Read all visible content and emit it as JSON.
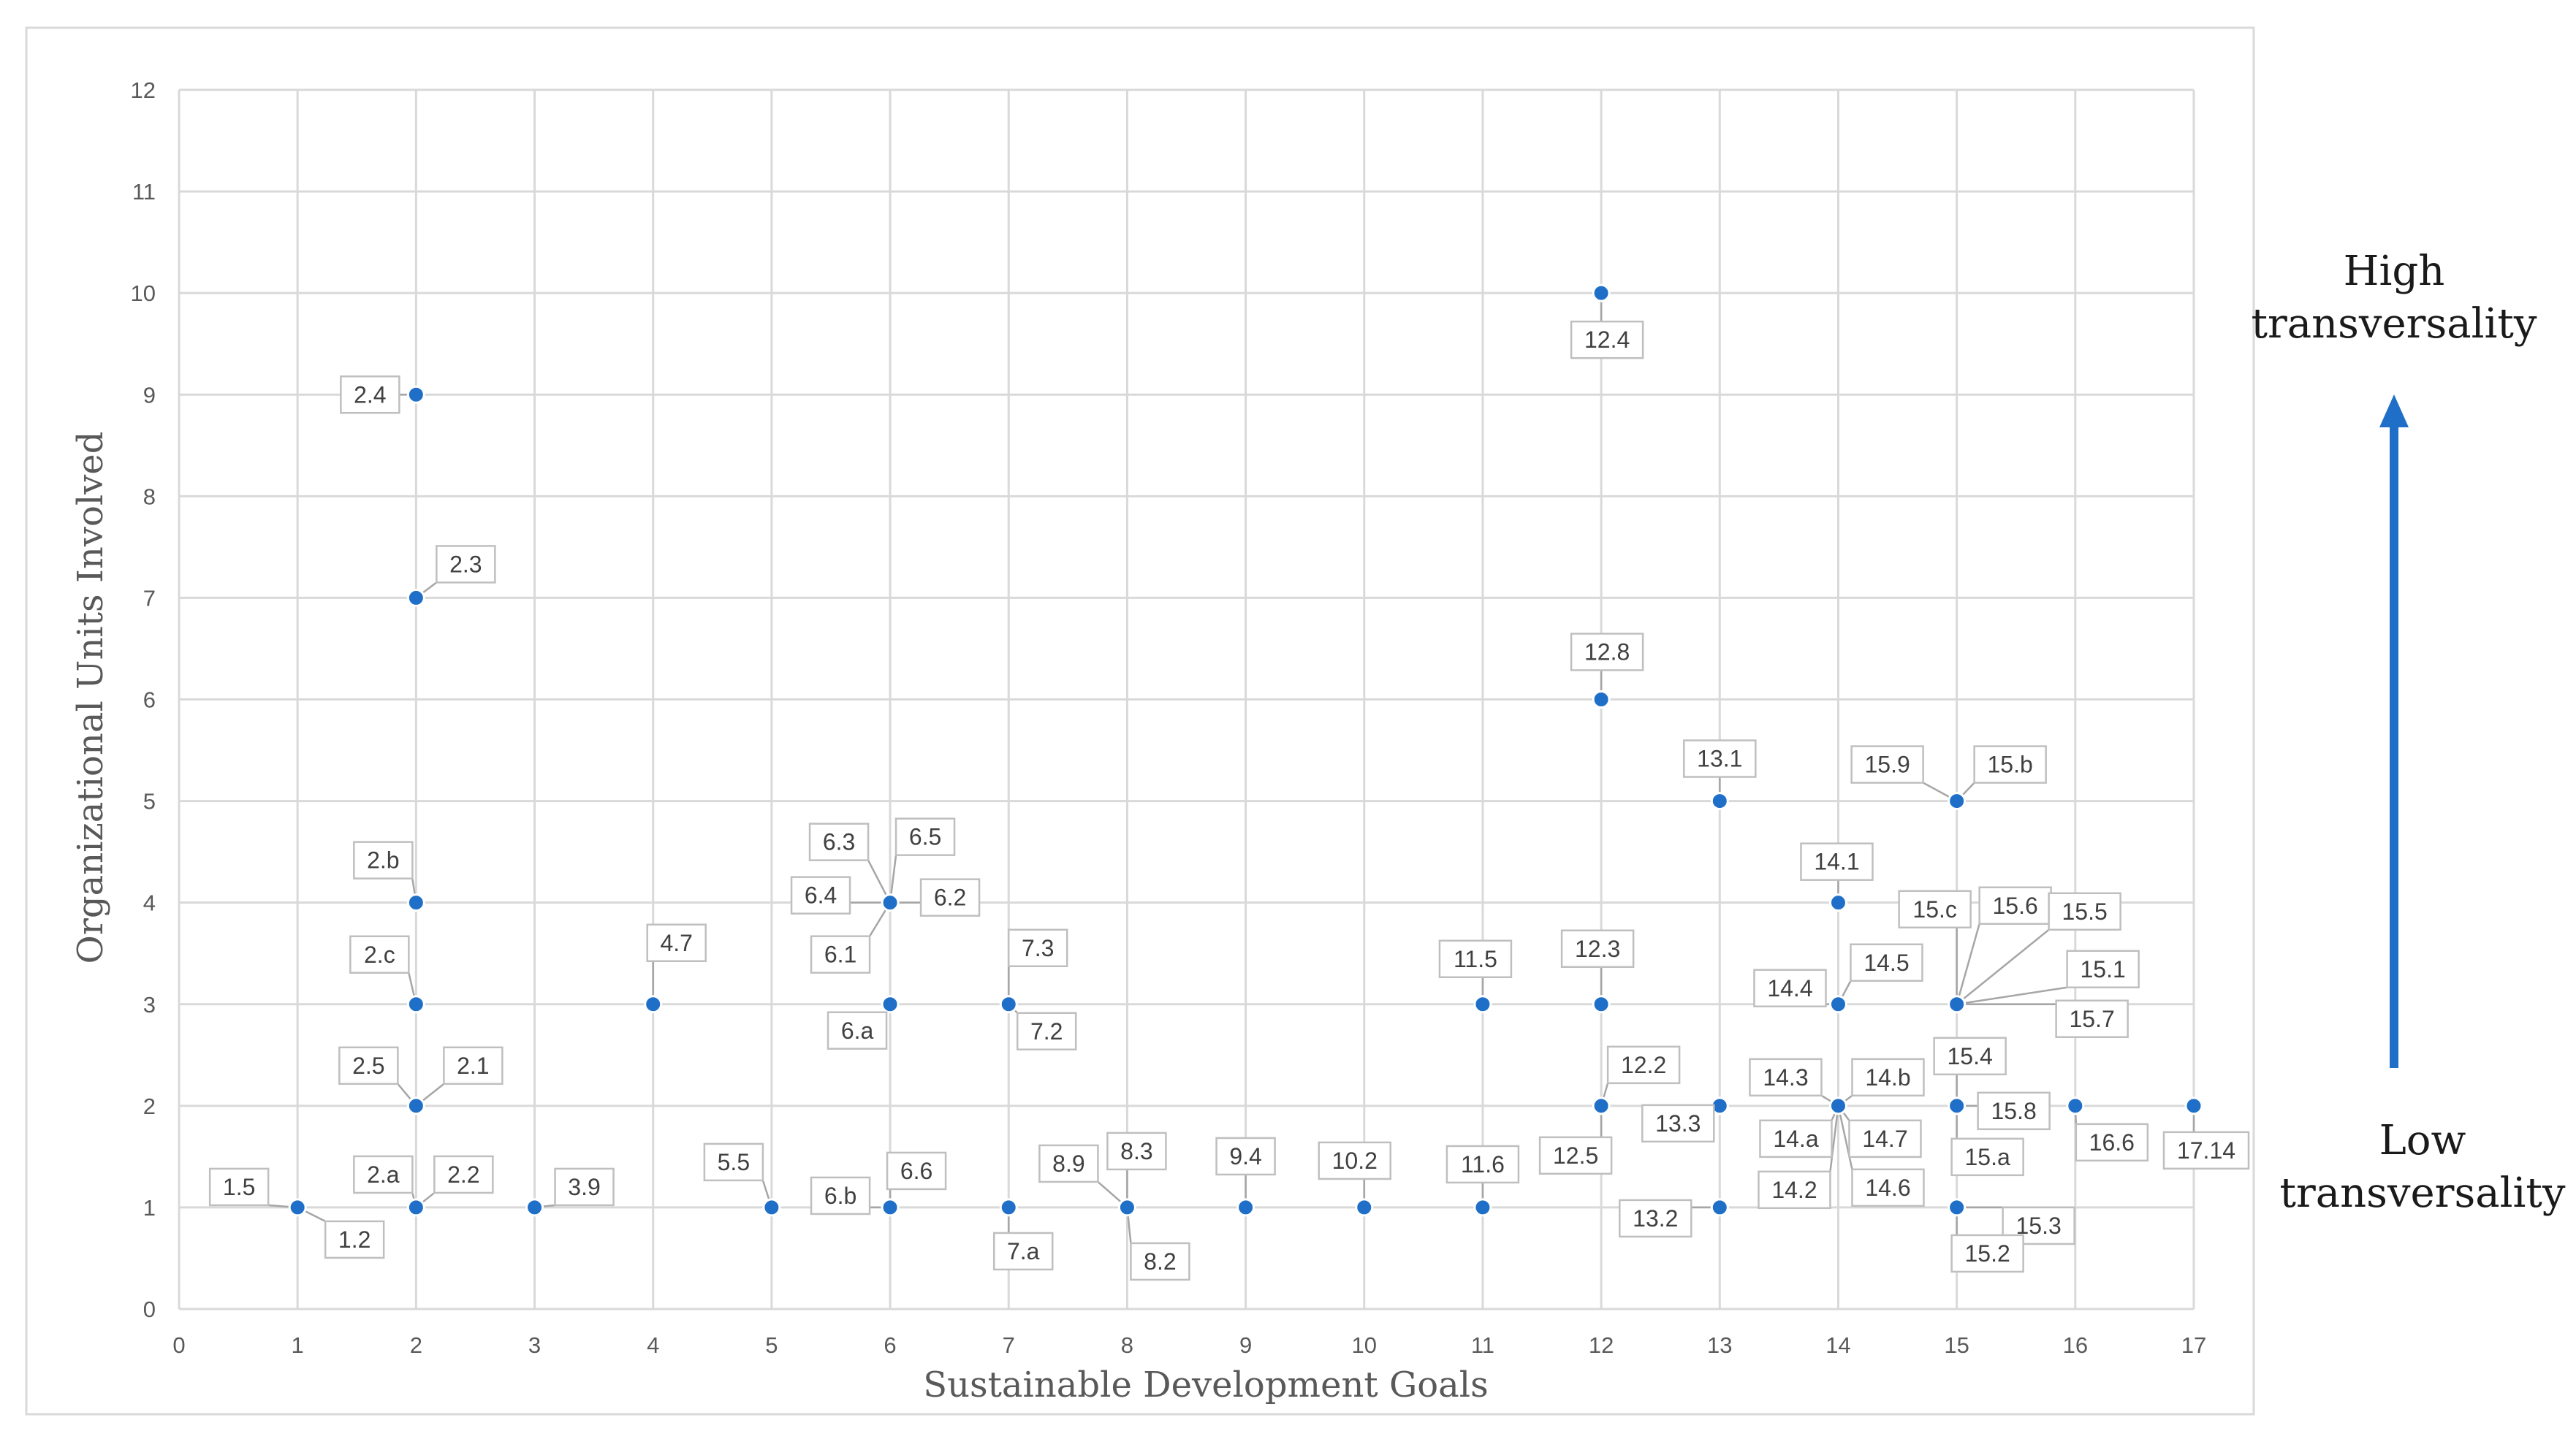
{
  "chart_data": {
    "type": "scatter",
    "title": "",
    "xlabel": "Sustainable Development Goals",
    "ylabel": "Organizational Units Involved",
    "xlim": [
      0,
      17
    ],
    "ylim": [
      0,
      12
    ],
    "x_ticks": [
      0,
      1,
      2,
      3,
      4,
      5,
      6,
      7,
      8,
      9,
      10,
      11,
      12,
      13,
      14,
      15,
      16,
      17
    ],
    "y_ticks": [
      0,
      1,
      2,
      3,
      4,
      5,
      6,
      7,
      8,
      9,
      10,
      11,
      12
    ],
    "grid": true,
    "legend": "none",
    "point_color": "#1f6fc8",
    "arrow_color": "#1f6fc8",
    "points": [
      {
        "label": "1.5",
        "x": 1,
        "y": 1
      },
      {
        "label": "1.2",
        "x": 1,
        "y": 1
      },
      {
        "label": "2.4",
        "x": 2,
        "y": 9
      },
      {
        "label": "2.3",
        "x": 2,
        "y": 7
      },
      {
        "label": "2.b",
        "x": 2,
        "y": 4
      },
      {
        "label": "2.c",
        "x": 2,
        "y": 3
      },
      {
        "label": "2.5",
        "x": 2,
        "y": 2
      },
      {
        "label": "2.1",
        "x": 2,
        "y": 2
      },
      {
        "label": "2.a",
        "x": 2,
        "y": 1
      },
      {
        "label": "2.2",
        "x": 2,
        "y": 1
      },
      {
        "label": "3.9",
        "x": 3,
        "y": 1
      },
      {
        "label": "4.7",
        "x": 4,
        "y": 3
      },
      {
        "label": "5.5",
        "x": 5,
        "y": 1
      },
      {
        "label": "6.3",
        "x": 6,
        "y": 4
      },
      {
        "label": "6.5",
        "x": 6,
        "y": 4
      },
      {
        "label": "6.4",
        "x": 6,
        "y": 4
      },
      {
        "label": "6.2",
        "x": 6,
        "y": 4
      },
      {
        "label": "6.1",
        "x": 6,
        "y": 4
      },
      {
        "label": "6.a",
        "x": 6,
        "y": 3
      },
      {
        "label": "6.b",
        "x": 6,
        "y": 1
      },
      {
        "label": "6.6",
        "x": 6,
        "y": 1
      },
      {
        "label": "7.3",
        "x": 7,
        "y": 3
      },
      {
        "label": "7.2",
        "x": 7,
        "y": 3
      },
      {
        "label": "7.a",
        "x": 7,
        "y": 1
      },
      {
        "label": "8.9",
        "x": 8,
        "y": 1
      },
      {
        "label": "8.3",
        "x": 8,
        "y": 1
      },
      {
        "label": "8.2",
        "x": 8,
        "y": 1
      },
      {
        "label": "9.4",
        "x": 9,
        "y": 1
      },
      {
        "label": "10.2",
        "x": 10,
        "y": 1
      },
      {
        "label": "11.5",
        "x": 11,
        "y": 3
      },
      {
        "label": "11.6",
        "x": 11,
        "y": 1
      },
      {
        "label": "12.4",
        "x": 12,
        "y": 10
      },
      {
        "label": "12.8",
        "x": 12,
        "y": 6
      },
      {
        "label": "12.3",
        "x": 12,
        "y": 3
      },
      {
        "label": "12.2",
        "x": 12,
        "y": 2
      },
      {
        "label": "12.5",
        "x": 12,
        "y": 2
      },
      {
        "label": "13.1",
        "x": 13,
        "y": 5
      },
      {
        "label": "13.3",
        "x": 13,
        "y": 2
      },
      {
        "label": "13.2",
        "x": 13,
        "y": 1
      },
      {
        "label": "14.1",
        "x": 14,
        "y": 4
      },
      {
        "label": "14.4",
        "x": 14,
        "y": 3
      },
      {
        "label": "14.5",
        "x": 14,
        "y": 3
      },
      {
        "label": "14.3",
        "x": 14,
        "y": 2
      },
      {
        "label": "14.b",
        "x": 14,
        "y": 2
      },
      {
        "label": "14.a",
        "x": 14,
        "y": 2
      },
      {
        "label": "14.7",
        "x": 14,
        "y": 2
      },
      {
        "label": "14.2",
        "x": 14,
        "y": 2
      },
      {
        "label": "14.6",
        "x": 14,
        "y": 2
      },
      {
        "label": "15.9",
        "x": 15,
        "y": 5
      },
      {
        "label": "15.b",
        "x": 15,
        "y": 5
      },
      {
        "label": "15.c",
        "x": 15,
        "y": 3
      },
      {
        "label": "15.6",
        "x": 15,
        "y": 3
      },
      {
        "label": "15.5",
        "x": 15,
        "y": 3
      },
      {
        "label": "15.1",
        "x": 15,
        "y": 3
      },
      {
        "label": "15.7",
        "x": 15,
        "y": 3
      },
      {
        "label": "15.4",
        "x": 15,
        "y": 2
      },
      {
        "label": "15.8",
        "x": 15,
        "y": 2
      },
      {
        "label": "15.a",
        "x": 15,
        "y": 2
      },
      {
        "label": "15.3",
        "x": 15,
        "y": 1
      },
      {
        "label": "15.2",
        "x": 15,
        "y": 1
      },
      {
        "label": "16.6",
        "x": 16,
        "y": 2
      },
      {
        "label": "17.14",
        "x": 17,
        "y": 2
      }
    ]
  },
  "side_labels": {
    "high_line1": "High",
    "high_line2": "transversality",
    "low_line1": "Low",
    "low_line2": "transversality"
  }
}
